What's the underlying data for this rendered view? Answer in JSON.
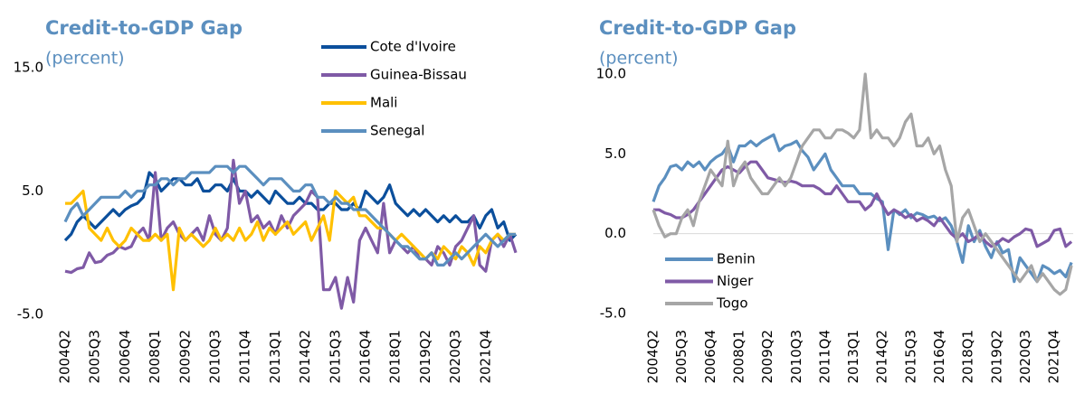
{
  "chart_data": [
    {
      "type": "line",
      "title": "Credit-to-GDP Gap",
      "subtitle": "(percent)",
      "categories": [
        "2004Q2",
        null,
        null,
        null,
        null,
        "2005Q3",
        null,
        null,
        null,
        null,
        "2006Q4",
        null,
        null,
        null,
        null,
        "2008Q1",
        null,
        null,
        null,
        null,
        "2009Q2",
        null,
        null,
        null,
        null,
        "2010Q3",
        null,
        null,
        null,
        null,
        "2011Q4",
        null,
        null,
        null,
        null,
        "2013Q1",
        null,
        null,
        null,
        null,
        "2014Q2",
        null,
        null,
        null,
        null,
        "2015Q3",
        null,
        null,
        null,
        null,
        "2016Q4",
        null,
        null,
        null,
        null,
        "2018Q1",
        null,
        null,
        null,
        null,
        "2019Q2",
        null,
        null,
        null,
        null,
        "2020Q3",
        null,
        null,
        null,
        null,
        "2021Q4",
        null,
        null,
        null,
        null,
        null
      ],
      "ylim": [
        -5,
        15
      ],
      "yticks": [
        {
          "value": -5,
          "label": "-5.0"
        },
        {
          "value": 5,
          "label": "5.0"
        },
        {
          "value": 15,
          "label": "15.0"
        }
      ],
      "grid": false,
      "series": [
        {
          "name": "Cote d'Ivoire",
          "color": "#0b4f9c",
          "values": [
            1.0,
            1.5,
            2.5,
            3.0,
            2.5,
            2.0,
            2.5,
            3.0,
            3.5,
            3.0,
            3.5,
            3.8,
            4.0,
            4.5,
            6.5,
            6.0,
            5.0,
            5.5,
            6.0,
            6.0,
            5.5,
            5.5,
            6.0,
            5.0,
            5.0,
            5.5,
            5.5,
            5.0,
            6.0,
            5.0,
            5.0,
            4.5,
            5.0,
            4.5,
            4.0,
            5.0,
            4.5,
            4.0,
            4.0,
            4.5,
            4.0,
            4.0,
            3.5,
            3.5,
            4.0,
            4.0,
            3.5,
            3.5,
            4.0,
            3.5,
            5.0,
            4.5,
            4.0,
            4.5,
            5.5,
            4.0,
            3.5,
            3.0,
            3.5,
            3.0,
            3.5,
            3.0,
            2.5,
            3.0,
            2.5,
            3.0,
            2.5,
            2.5,
            3.0,
            2.0,
            3.0,
            3.5,
            2.0,
            2.5,
            1.0,
            1.5
          ]
        },
        {
          "name": "Guinea-Bissau",
          "color": "#7f5aa6",
          "values": [
            -1.5,
            -1.6,
            -1.3,
            -1.2,
            0.0,
            -0.8,
            -0.7,
            -0.2,
            0.0,
            0.5,
            0.3,
            0.5,
            1.5,
            2.0,
            1.0,
            6.5,
            1.0,
            2.0,
            2.5,
            1.5,
            1.0,
            1.5,
            2.0,
            1.0,
            3.0,
            1.5,
            1.0,
            2.0,
            7.5,
            4.0,
            5.0,
            2.5,
            3.0,
            2.0,
            2.5,
            1.5,
            3.0,
            2.0,
            3.0,
            3.5,
            4.0,
            5.0,
            4.5,
            -3.0,
            -3.0,
            -2.0,
            -4.5,
            -2.0,
            -4.0,
            1.0,
            2.0,
            1.0,
            0.0,
            4.0,
            0.0,
            1.0,
            0.5,
            0.0,
            0.5,
            -0.5,
            -0.5,
            -1.0,
            0.5,
            0.0,
            -1.0,
            0.5,
            1.0,
            2.0,
            3.0,
            -1.0,
            -1.5,
            1.0,
            1.5,
            0.5,
            1.5,
            0.0
          ]
        },
        {
          "name": "Mali",
          "color": "#ffc000",
          "values": [
            4.0,
            4.0,
            4.5,
            5.0,
            2.0,
            1.5,
            1.0,
            2.0,
            1.0,
            0.5,
            1.0,
            2.0,
            1.5,
            1.0,
            1.0,
            1.5,
            1.0,
            1.5,
            -3.0,
            2.0,
            1.0,
            1.5,
            1.0,
            0.5,
            1.0,
            2.0,
            1.0,
            1.5,
            1.0,
            2.0,
            1.0,
            1.5,
            2.5,
            1.0,
            2.0,
            1.5,
            2.0,
            2.5,
            1.5,
            2.0,
            2.5,
            1.0,
            2.0,
            3.0,
            1.0,
            5.0,
            4.5,
            4.0,
            4.5,
            3.0,
            3.0,
            2.5,
            2.0,
            2.0,
            1.5,
            1.0,
            1.5,
            1.0,
            0.5,
            0.0,
            -0.5,
            0.0,
            -0.5,
            0.5,
            0.0,
            -0.5,
            0.5,
            0.0,
            -1.0,
            0.5,
            0.0,
            1.0,
            1.5,
            1.0,
            1.5,
            1.5
          ]
        },
        {
          "name": "Senegal",
          "color": "#5b8fbf",
          "values": [
            2.5,
            3.5,
            4.0,
            3.0,
            3.5,
            4.0,
            4.5,
            4.5,
            4.5,
            4.5,
            5.0,
            4.5,
            5.0,
            5.0,
            5.5,
            5.5,
            6.0,
            6.0,
            5.5,
            6.0,
            6.0,
            6.5,
            6.5,
            6.5,
            6.5,
            7.0,
            7.0,
            7.0,
            6.5,
            7.0,
            7.0,
            6.5,
            6.0,
            5.5,
            6.0,
            6.0,
            6.0,
            5.5,
            5.0,
            5.0,
            5.5,
            5.5,
            4.5,
            4.5,
            4.0,
            4.5,
            4.0,
            4.0,
            3.5,
            3.5,
            3.5,
            3.0,
            2.5,
            2.0,
            1.5,
            1.0,
            0.5,
            0.5,
            0.0,
            -0.5,
            -0.5,
            0.0,
            -1.0,
            -1.0,
            -0.5,
            0.0,
            -0.5,
            0.0,
            0.5,
            1.0,
            1.5,
            1.0,
            0.5,
            1.0,
            1.5,
            1.5
          ]
        }
      ]
    },
    {
      "type": "line",
      "title": "Credit-to-GDP Gap",
      "subtitle": "(percent)",
      "categories": [
        "2004Q2",
        null,
        null,
        null,
        null,
        "2005Q3",
        null,
        null,
        null,
        null,
        "2006Q4",
        null,
        null,
        null,
        null,
        "2008Q1",
        null,
        null,
        null,
        null,
        "2009Q2",
        null,
        null,
        null,
        null,
        "2010Q3",
        null,
        null,
        null,
        null,
        "2011Q4",
        null,
        null,
        null,
        null,
        "2013Q1",
        null,
        null,
        null,
        null,
        "2014Q2",
        null,
        null,
        null,
        null,
        "2015Q3",
        null,
        null,
        null,
        null,
        "2016Q4",
        null,
        null,
        null,
        null,
        "2018Q1",
        null,
        null,
        null,
        null,
        "2019Q2",
        null,
        null,
        null,
        null,
        "2020Q3",
        null,
        null,
        null,
        null,
        "2021Q4",
        null,
        null,
        null
      ],
      "ylim": [
        -5,
        10
      ],
      "yticks": [
        {
          "value": -5,
          "label": "-5.0"
        },
        {
          "value": 0,
          "label": "0.0"
        },
        {
          "value": 5,
          "label": "5.0"
        },
        {
          "value": 10,
          "label": "10.0"
        }
      ],
      "grid": false,
      "zero_line": true,
      "series": [
        {
          "name": "Benin",
          "color": "#5b8fbf",
          "values": [
            2.0,
            3.0,
            3.5,
            4.2,
            4.3,
            4.0,
            4.5,
            4.2,
            4.5,
            4.0,
            4.5,
            4.8,
            5.0,
            5.5,
            4.5,
            5.5,
            5.5,
            5.8,
            5.5,
            5.8,
            6.0,
            6.2,
            5.2,
            5.5,
            5.6,
            5.8,
            5.2,
            4.8,
            4.0,
            4.5,
            5.0,
            4.0,
            3.5,
            3.0,
            3.0,
            3.0,
            2.5,
            2.5,
            2.5,
            2.2,
            2.0,
            -1.0,
            1.5,
            1.2,
            1.5,
            1.0,
            1.3,
            1.2,
            1.0,
            1.1,
            0.8,
            1.0,
            0.5,
            -0.5,
            -1.8,
            0.5,
            -0.5,
            0.2,
            -0.8,
            -1.5,
            -0.5,
            -1.2,
            -1.0,
            -3.0,
            -1.5,
            -2.0,
            -2.5,
            -3.0,
            -2.0,
            -2.2,
            -2.5,
            -2.3,
            -2.7,
            -1.8
          ]
        },
        {
          "name": "Niger",
          "color": "#7f5aa6",
          "values": [
            1.5,
            1.5,
            1.3,
            1.2,
            1.0,
            1.0,
            1.2,
            1.5,
            2.0,
            2.5,
            3.0,
            3.5,
            4.0,
            4.2,
            4.0,
            3.8,
            4.2,
            4.5,
            4.5,
            4.0,
            3.5,
            3.4,
            3.3,
            3.2,
            3.3,
            3.2,
            3.0,
            3.0,
            3.0,
            2.8,
            2.5,
            2.5,
            3.0,
            2.5,
            2.0,
            2.0,
            2.0,
            1.5,
            1.8,
            2.5,
            1.8,
            1.2,
            1.5,
            1.3,
            1.0,
            1.2,
            0.8,
            1.0,
            0.8,
            0.5,
            1.0,
            0.5,
            0.0,
            -0.3,
            0.0,
            -0.5,
            -0.3,
            0.0,
            -0.5,
            -0.8,
            -0.6,
            -0.3,
            -0.5,
            -0.2,
            0.0,
            0.3,
            0.2,
            -0.8,
            -0.6,
            -0.4,
            0.2,
            0.3,
            -0.8,
            -0.5
          ]
        },
        {
          "name": "Togo",
          "color": "#a6a6a6",
          "values": [
            1.5,
            0.5,
            -0.2,
            0.0,
            0.0,
            1.0,
            1.5,
            0.5,
            2.0,
            3.0,
            4.0,
            3.5,
            3.0,
            5.8,
            3.0,
            4.0,
            4.5,
            3.5,
            3.0,
            2.5,
            2.5,
            3.0,
            3.5,
            3.0,
            3.5,
            4.5,
            5.5,
            6.0,
            6.5,
            6.5,
            6.0,
            6.0,
            6.5,
            6.5,
            6.3,
            6.0,
            6.5,
            10.0,
            6.0,
            6.5,
            6.0,
            6.0,
            5.5,
            6.0,
            7.0,
            7.5,
            5.5,
            5.5,
            6.0,
            5.0,
            5.5,
            4.0,
            3.0,
            -0.5,
            1.0,
            1.5,
            0.5,
            -0.5,
            0.0,
            -0.5,
            -1.0,
            -1.5,
            -2.0,
            -2.5,
            -3.0,
            -2.5,
            -2.0,
            -3.0,
            -2.5,
            -3.0,
            -3.5,
            -3.8,
            -3.5,
            -2.0
          ]
        }
      ]
    }
  ]
}
